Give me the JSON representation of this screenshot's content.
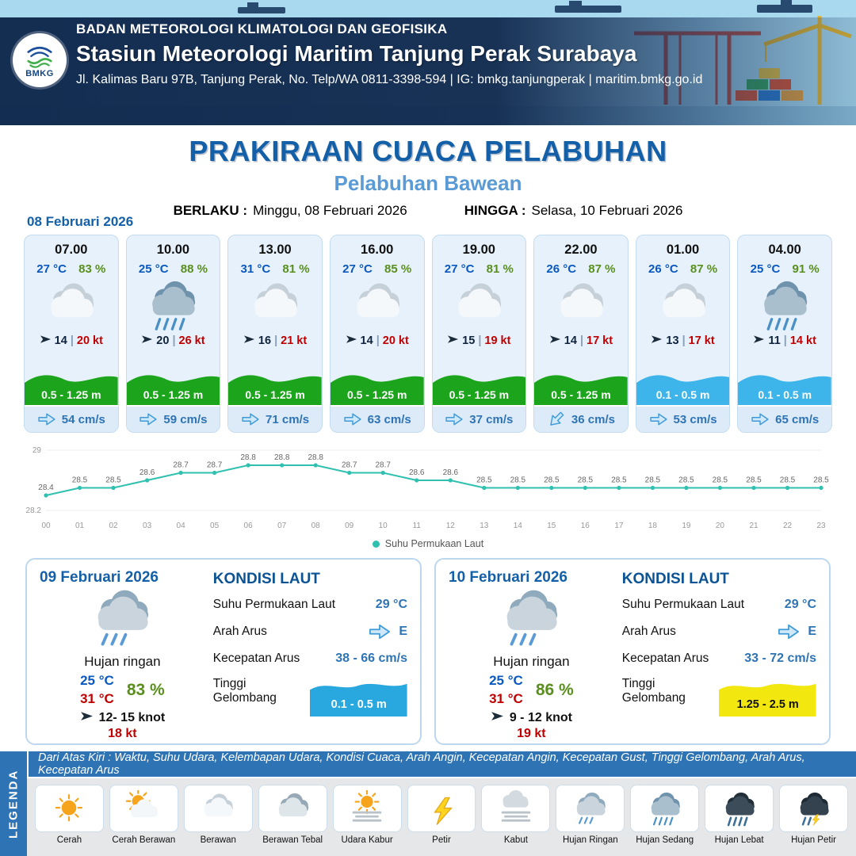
{
  "header": {
    "org": "BADAN METEOROLOGI KLIMATOLOGI DAN GEOFISIKA",
    "station": "Stasiun Meteorologi Maritim Tanjung Perak Surabaya",
    "address": "Jl. Kalimas Baru 97B, Tanjung Perak, No. Telp/WA 0811-3398-594 | IG: bmkg.tanjungperak | maritim.bmkg.go.id",
    "logo_text": "BMKG"
  },
  "title": {
    "main": "PRAKIRAAN CUACA PELABUHAN",
    "sub": "Pelabuhan Bawean",
    "berlaku_label": "BERLAKU :",
    "berlaku_value": "Minggu, 08 Februari 2026",
    "hingga_label": "HINGGA :",
    "hingga_value": "Selasa, 10 Februari 2026"
  },
  "labels": {
    "wind_sep": "|"
  },
  "hourly_date": "08 Februari 2026",
  "hourly": [
    {
      "time": "07.00",
      "temp": "27 °C",
      "rh": "83 %",
      "icon": "berawan",
      "wind": "14",
      "gust": "20 kt",
      "wave": "0.5 - 1.25 m",
      "wave_color": "#1ca41c",
      "current": "54 cm/s",
      "current_rot": 0
    },
    {
      "time": "10.00",
      "temp": "25 °C",
      "rh": "88 %",
      "icon": "hujan-sedang",
      "wind": "20",
      "gust": "26 kt",
      "wave": "0.5 - 1.25 m",
      "wave_color": "#1ca41c",
      "current": "59 cm/s",
      "current_rot": 0
    },
    {
      "time": "13.00",
      "temp": "31 °C",
      "rh": "81 %",
      "icon": "berawan",
      "wind": "16",
      "gust": "21 kt",
      "wave": "0.5 - 1.25 m",
      "wave_color": "#1ca41c",
      "current": "71 cm/s",
      "current_rot": 0
    },
    {
      "time": "16.00",
      "temp": "27 °C",
      "rh": "85 %",
      "icon": "berawan",
      "wind": "14",
      "gust": "20 kt",
      "wave": "0.5 - 1.25 m",
      "wave_color": "#1ca41c",
      "current": "63 cm/s",
      "current_rot": 0
    },
    {
      "time": "19.00",
      "temp": "27 °C",
      "rh": "81 %",
      "icon": "berawan",
      "wind": "15",
      "gust": "19 kt",
      "wave": "0.5 - 1.25 m",
      "wave_color": "#1ca41c",
      "current": "37 cm/s",
      "current_rot": 0
    },
    {
      "time": "22.00",
      "temp": "26 °C",
      "rh": "87 %",
      "icon": "berawan",
      "wind": "14",
      "gust": "17 kt",
      "wave": "0.5 - 1.25 m",
      "wave_color": "#1ca41c",
      "current": "36 cm/s",
      "current_rot": 135
    },
    {
      "time": "01.00",
      "temp": "26 °C",
      "rh": "87 %",
      "icon": "berawan",
      "wind": "13",
      "gust": "17 kt",
      "wave": "0.1 - 0.5 m",
      "wave_color": "#3db4ea",
      "current": "53 cm/s",
      "current_rot": 0
    },
    {
      "time": "04.00",
      "temp": "25 °C",
      "rh": "91 %",
      "icon": "hujan-sedang",
      "wind": "11",
      "gust": "14 kt",
      "wave": "0.1 - 0.5 m",
      "wave_color": "#3db4ea",
      "current": "65 cm/s",
      "current_rot": 0
    }
  ],
  "chart_data": {
    "type": "line",
    "series_name": "Suhu Permukaan Laut",
    "x": [
      "00",
      "01",
      "02",
      "03",
      "04",
      "05",
      "06",
      "07",
      "08",
      "09",
      "10",
      "11",
      "12",
      "13",
      "14",
      "15",
      "16",
      "17",
      "18",
      "19",
      "20",
      "21",
      "22",
      "23"
    ],
    "values": [
      28.4,
      28.5,
      28.5,
      28.6,
      28.7,
      28.7,
      28.8,
      28.8,
      28.8,
      28.7,
      28.7,
      28.6,
      28.6,
      28.5,
      28.5,
      28.5,
      28.5,
      28.5,
      28.5,
      28.5,
      28.5,
      28.5,
      28.5,
      28.5
    ],
    "ylim": [
      28.2,
      29
    ],
    "yticks": [
      28.2,
      29
    ],
    "line_color": "#2fc0b0",
    "legend_position": "bottom",
    "grid": true
  },
  "daily": [
    {
      "date": "09 Februari 2026",
      "icon": "hujan-ringan",
      "condition": "Hujan ringan",
      "temp_min": "25 °C",
      "temp_max": "31 °C",
      "rh": "83 %",
      "wind": "12- 15 knot",
      "gust": "18 kt",
      "sea": {
        "title": "KONDISI LAUT",
        "sst_label": "Suhu Permukaan Laut",
        "sst": "29 °C",
        "dir_label": "Arah Arus",
        "dir": "E",
        "speed_label": "Kecepatan Arus",
        "speed": "38 - 66 cm/s",
        "wave_label": "Tinggi Gelombang",
        "wave": "0.1 - 0.5 m",
        "wave_color": "#29a8e0",
        "wave_text_color": "#ffffff"
      }
    },
    {
      "date": "10 Februari 2026",
      "icon": "hujan-ringan",
      "condition": "Hujan ringan",
      "temp_min": "25 °C",
      "temp_max": "31 °C",
      "rh": "86 %",
      "wind": "9  - 12 knot",
      "gust": "19 kt",
      "sea": {
        "title": "KONDISI LAUT",
        "sst_label": "Suhu Permukaan Laut",
        "sst": "29 °C",
        "dir_label": "Arah Arus",
        "dir": "E",
        "speed_label": "Kecepatan Arus",
        "speed": "33 - 72 cm/s",
        "wave_label": "Tinggi Gelombang",
        "wave": "1.25 - 2.5 m",
        "wave_color": "#f2e70e",
        "wave_text_color": "#111111"
      }
    }
  ],
  "legend": {
    "side_label": "LEGENDA",
    "strip_text": "Dari Atas Kiri : Waktu, Suhu Udara, Kelembapan Udara, Kondisi Cuaca, Arah Angin, Kecepatan Angin, Kecepatan Gust, Tinggi Gelombang, Arah Arus, Kecepatan Arus",
    "items": [
      {
        "label": "Cerah",
        "icon": "cerah"
      },
      {
        "label": "Cerah Berawan",
        "icon": "cerah-berawan"
      },
      {
        "label": "Berawan",
        "icon": "berawan"
      },
      {
        "label": "Berawan Tebal",
        "icon": "berawan-tebal"
      },
      {
        "label": "Udara Kabur",
        "icon": "udara-kabur"
      },
      {
        "label": "Petir",
        "icon": "petir"
      },
      {
        "label": "Kabut",
        "icon": "kabut"
      },
      {
        "label": "Hujan Ringan",
        "icon": "hujan-ringan"
      },
      {
        "label": "Hujan Sedang",
        "icon": "hujan-sedang"
      },
      {
        "label": "Hujan Lebat",
        "icon": "hujan-lebat"
      },
      {
        "label": "Hujan Petir",
        "icon": "hujan-petir"
      }
    ]
  }
}
